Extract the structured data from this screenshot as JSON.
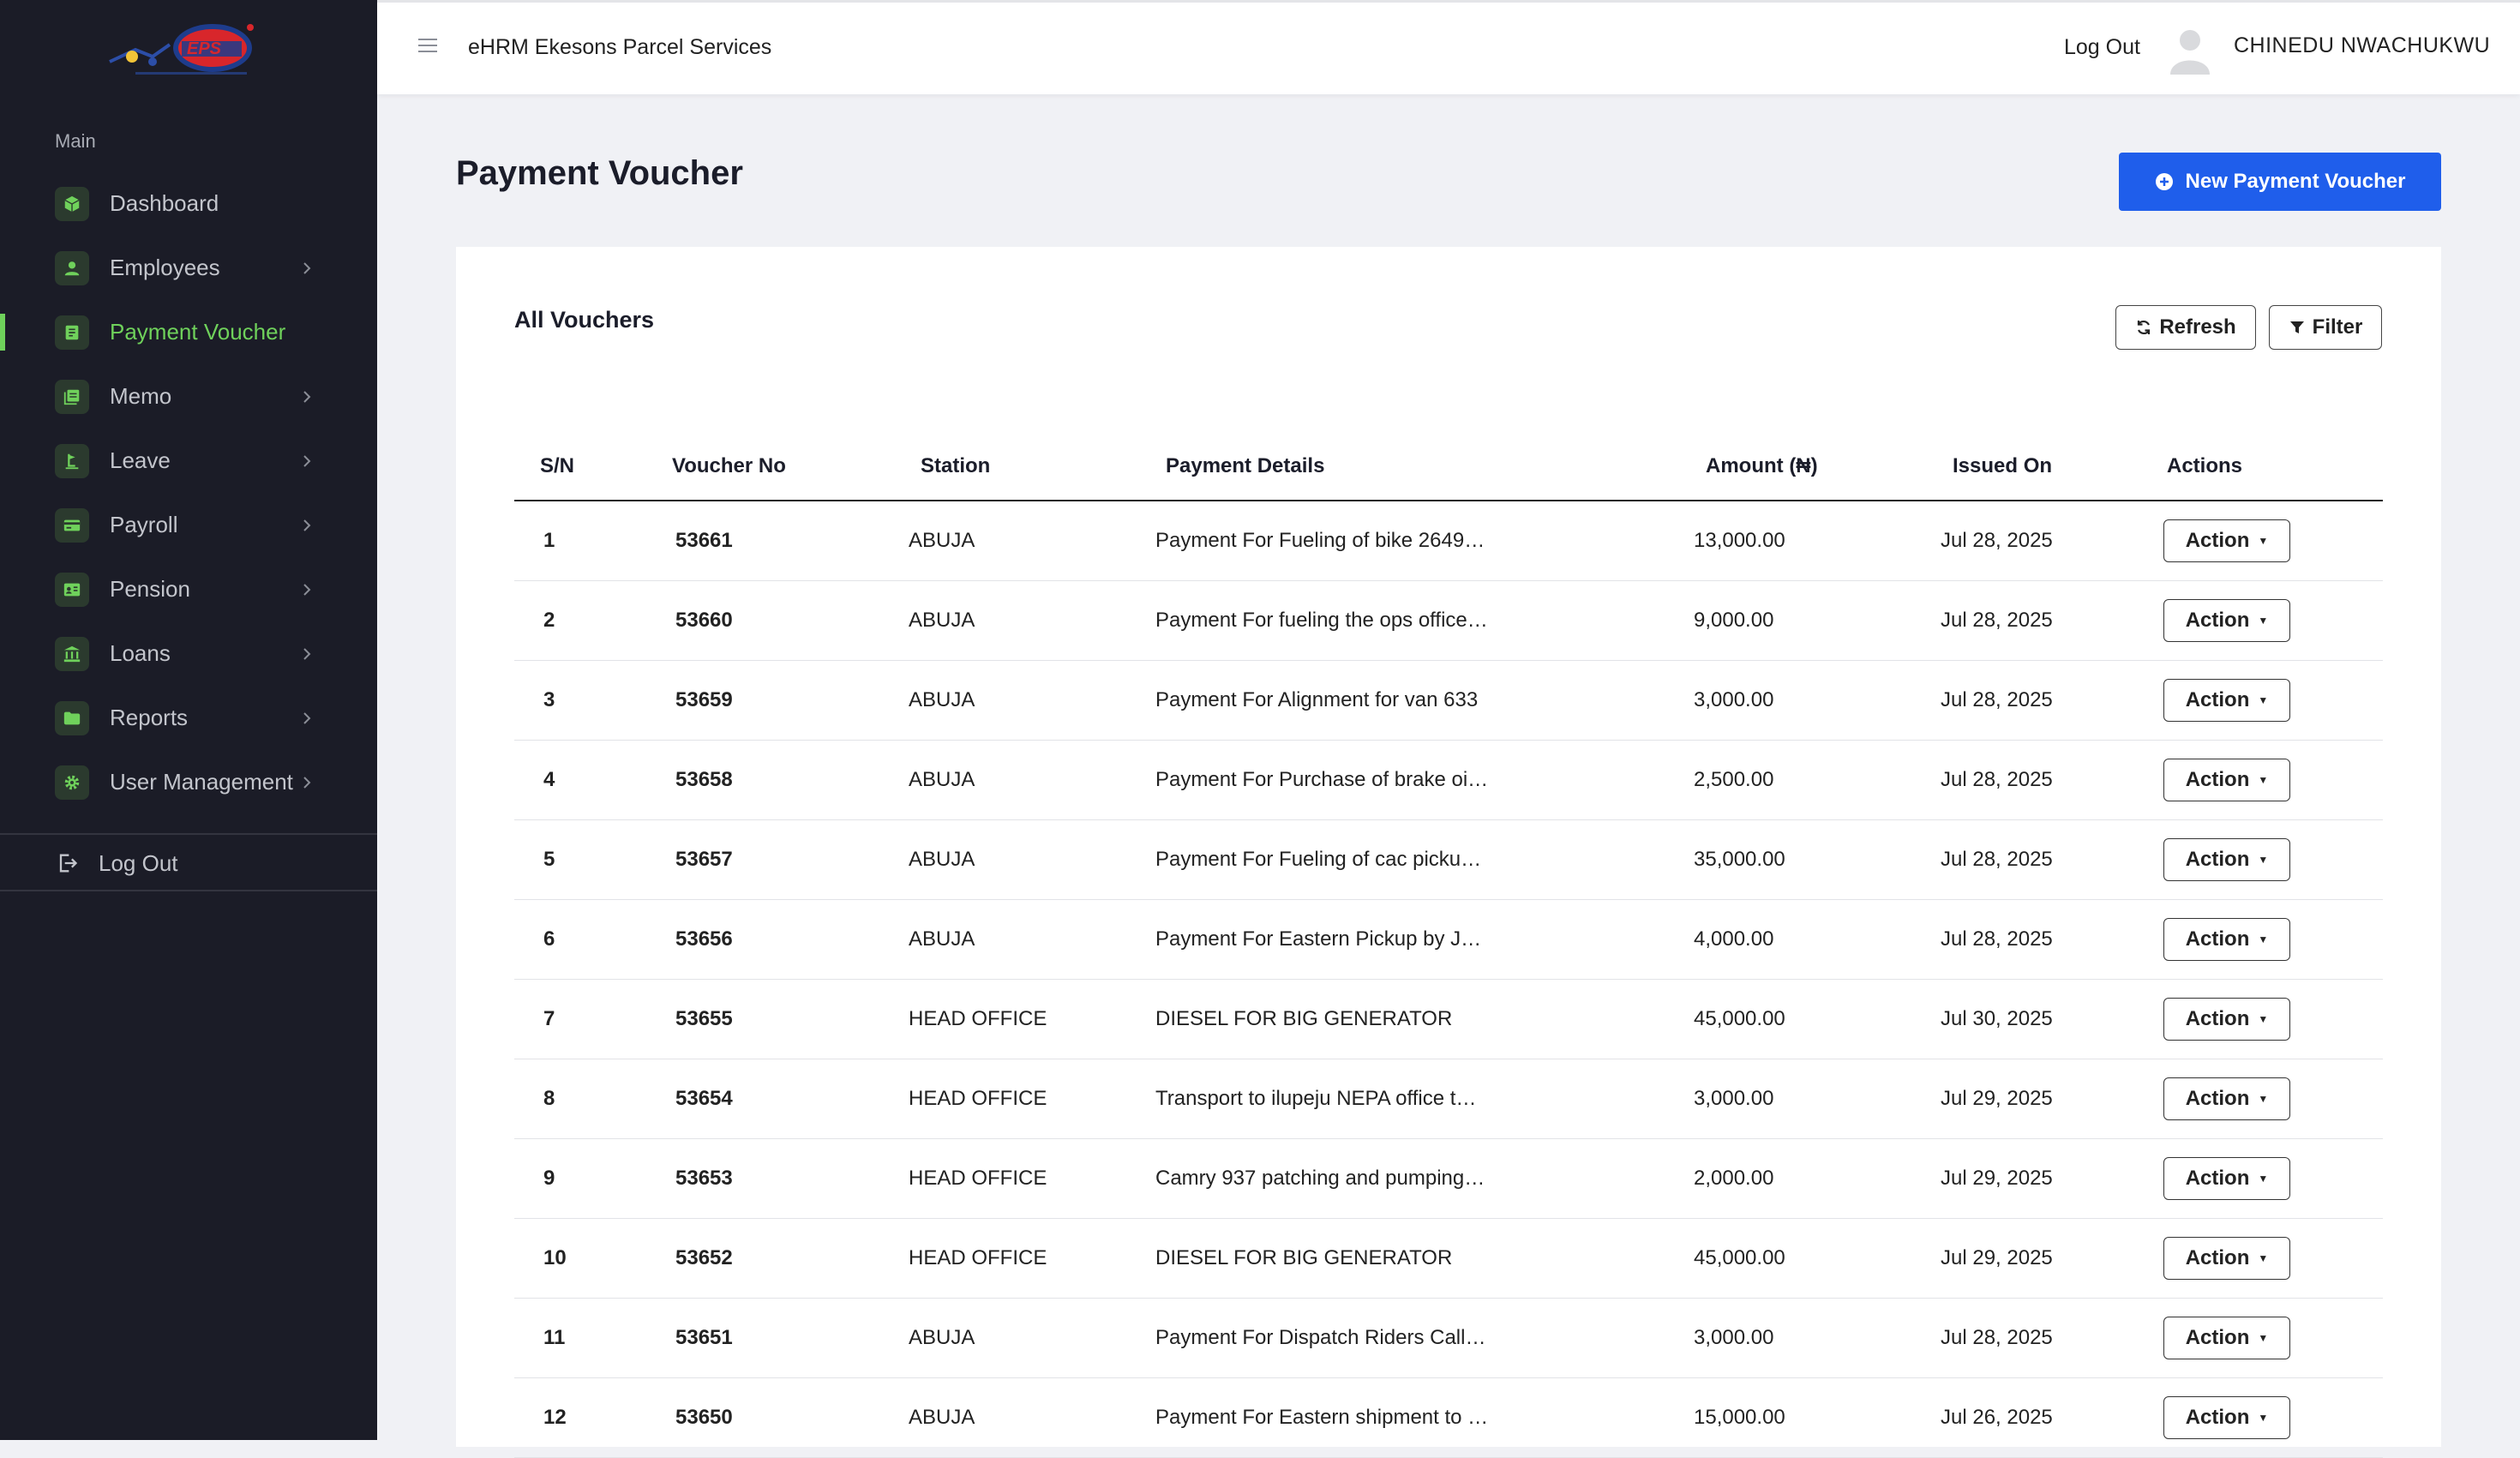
{
  "sidebar": {
    "section_label": "Main",
    "items": [
      {
        "label": "Dashboard",
        "icon": "cube-icon",
        "has_chevron": false,
        "active": false
      },
      {
        "label": "Employees",
        "icon": "user-icon",
        "has_chevron": true,
        "active": false
      },
      {
        "label": "Payment Voucher",
        "icon": "document-icon",
        "has_chevron": false,
        "active": true
      },
      {
        "label": "Memo",
        "icon": "memo-icon",
        "has_chevron": true,
        "active": false
      },
      {
        "label": "Leave",
        "icon": "leave-icon",
        "has_chevron": true,
        "active": false
      },
      {
        "label": "Payroll",
        "icon": "credit-card-icon",
        "has_chevron": true,
        "active": false
      },
      {
        "label": "Pension",
        "icon": "id-card-icon",
        "has_chevron": true,
        "active": false
      },
      {
        "label": "Loans",
        "icon": "bank-icon",
        "has_chevron": true,
        "active": false
      },
      {
        "label": "Reports",
        "icon": "folder-icon",
        "has_chevron": true,
        "active": false
      },
      {
        "label": "User Management",
        "icon": "gear-icon",
        "has_chevron": true,
        "active": false
      }
    ],
    "logout_label": "Log Out"
  },
  "topbar": {
    "app_title": "eHRM Ekesons Parcel Services",
    "logout_label": "Log Out",
    "user_name": "CHINEDU NWACHUKWU"
  },
  "page": {
    "title": "Payment Voucher",
    "new_button_label": "New Payment Voucher"
  },
  "card": {
    "title": "All Vouchers",
    "refresh_label": "Refresh",
    "filter_label": "Filter"
  },
  "table": {
    "headers": [
      "S/N",
      "Voucher No",
      "Station",
      "Payment Details",
      "Amount (₦)",
      "Issued On",
      "Actions"
    ],
    "action_label": "Action",
    "rows": [
      {
        "sn": "1",
        "voucher_no": "53661",
        "station": "ABUJA",
        "details": "Payment For Fueling of bike 2649 …",
        "amount": "13,000.00",
        "issued_on": "Jul 28, 2025"
      },
      {
        "sn": "2",
        "voucher_no": "53660",
        "station": "ABUJA",
        "details": "Payment For fueling the ops office…",
        "amount": "9,000.00",
        "issued_on": "Jul 28, 2025"
      },
      {
        "sn": "3",
        "voucher_no": "53659",
        "station": "ABUJA",
        "details": "Payment For Alignment for van 633",
        "amount": "3,000.00",
        "issued_on": "Jul 28, 2025"
      },
      {
        "sn": "4",
        "voucher_no": "53658",
        "station": "ABUJA",
        "details": "Payment For Purchase of brake oil…",
        "amount": "2,500.00",
        "issued_on": "Jul 28, 2025"
      },
      {
        "sn": "5",
        "voucher_no": "53657",
        "station": "ABUJA",
        "details": "Payment For Fueling of cac pickup…",
        "amount": "35,000.00",
        "issued_on": "Jul 28, 2025"
      },
      {
        "sn": "6",
        "voucher_no": "53656",
        "station": "ABUJA",
        "details": "Payment For Eastern Pickup by Jo…",
        "amount": "4,000.00",
        "issued_on": "Jul 28, 2025"
      },
      {
        "sn": "7",
        "voucher_no": "53655",
        "station": "HEAD OFFICE",
        "details": "DIESEL FOR BIG GENERATOR",
        "amount": "45,000.00",
        "issued_on": "Jul 30, 2025"
      },
      {
        "sn": "8",
        "voucher_no": "53654",
        "station": "HEAD OFFICE",
        "details": "Transport to ilupeju NEPA office tw…",
        "amount": "3,000.00",
        "issued_on": "Jul 29, 2025"
      },
      {
        "sn": "9",
        "voucher_no": "53653",
        "station": "HEAD OFFICE",
        "details": "Camry 937 patching and pumping …",
        "amount": "2,000.00",
        "issued_on": "Jul 29, 2025"
      },
      {
        "sn": "10",
        "voucher_no": "53652",
        "station": "HEAD OFFICE",
        "details": "DIESEL FOR BIG GENERATOR",
        "amount": "45,000.00",
        "issued_on": "Jul 29, 2025"
      },
      {
        "sn": "11",
        "voucher_no": "53651",
        "station": "ABUJA",
        "details": "Payment For Dispatch Riders Call …",
        "amount": "3,000.00",
        "issued_on": "Jul 28, 2025"
      },
      {
        "sn": "12",
        "voucher_no": "53650",
        "station": "ABUJA",
        "details": "Payment For Eastern shipment to …",
        "amount": "15,000.00",
        "issued_on": "Jul 26, 2025"
      }
    ]
  },
  "colors": {
    "sidebar_bg": "#1b1c27",
    "accent_green": "#6fd15b",
    "primary_blue": "#1f5eeb"
  }
}
